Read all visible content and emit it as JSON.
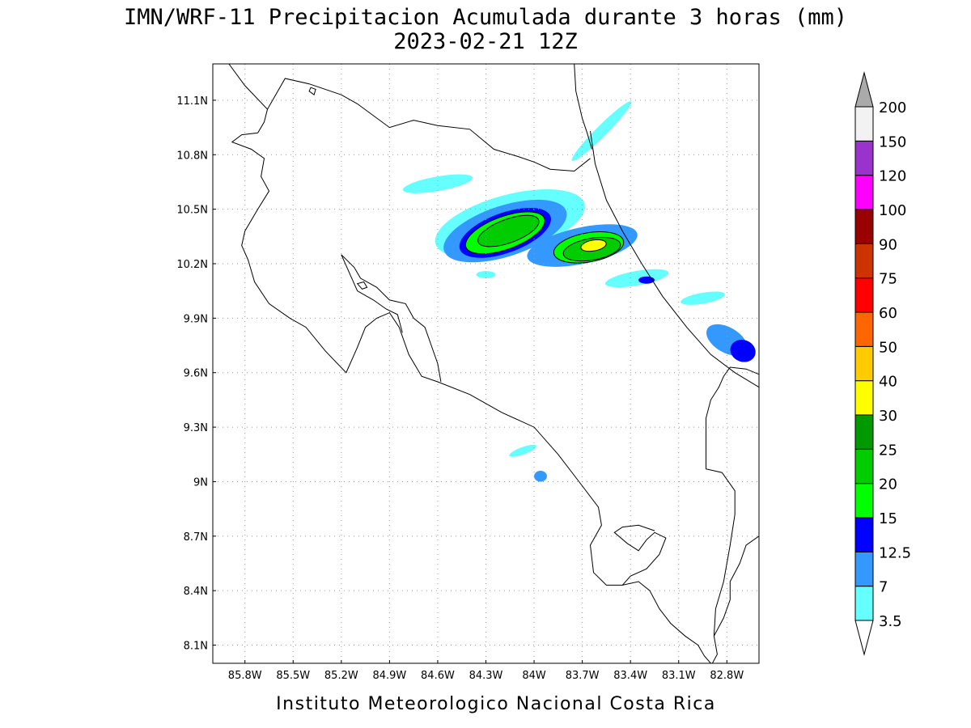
{
  "title": {
    "line1": "IMN/WRF-11 Precipitacion Acumulada durante 3 horas (mm)",
    "line2": "2023-02-21 12Z"
  },
  "map": {
    "lon_range": [
      -86.0,
      -82.6
    ],
    "lat_range": [
      8.0,
      11.3
    ],
    "lon_ticks": [
      {
        "value": -85.8,
        "label": "85.8W"
      },
      {
        "value": -85.5,
        "label": "85.5W"
      },
      {
        "value": -85.2,
        "label": "85.2W"
      },
      {
        "value": -84.9,
        "label": "84.9W"
      },
      {
        "value": -84.6,
        "label": "84.6W"
      },
      {
        "value": -84.3,
        "label": "84.3W"
      },
      {
        "value": -84.0,
        "label": "84W"
      },
      {
        "value": -83.7,
        "label": "83.7W"
      },
      {
        "value": -83.4,
        "label": "83.4W"
      },
      {
        "value": -83.1,
        "label": "83.1W"
      },
      {
        "value": -82.8,
        "label": "82.8W"
      }
    ],
    "lat_ticks": [
      {
        "value": 11.1,
        "label": "11.1N"
      },
      {
        "value": 10.8,
        "label": "10.8N"
      },
      {
        "value": 10.5,
        "label": "10.5N"
      },
      {
        "value": 10.2,
        "label": "10.2N"
      },
      {
        "value": 9.9,
        "label": "9.9N"
      },
      {
        "value": 9.6,
        "label": "9.6N"
      },
      {
        "value": 9.3,
        "label": "9.3N"
      },
      {
        "value": 9.0,
        "label": "9N"
      },
      {
        "value": 8.7,
        "label": "8.7N"
      },
      {
        "value": 8.4,
        "label": "8.4N"
      },
      {
        "value": 8.1,
        "label": "8.1N"
      }
    ],
    "grid": "dotted",
    "coastlines": [
      {
        "name": "lake-nicaragua-shore",
        "points": [
          [
            -85.9,
            11.3
          ],
          [
            -85.8,
            11.18
          ],
          [
            -85.66,
            11.05
          ],
          [
            -85.55,
            11.22
          ],
          [
            -85.4,
            11.19
          ],
          [
            -85.2,
            11.13
          ],
          [
            -85.1,
            11.08
          ],
          [
            -84.9,
            10.95
          ],
          [
            -84.75,
            10.99
          ],
          [
            -84.6,
            10.96
          ],
          [
            -84.4,
            10.94
          ],
          [
            -84.25,
            10.83
          ],
          [
            -84.1,
            10.79
          ],
          [
            -84.0,
            10.76
          ],
          [
            -83.9,
            10.72
          ],
          [
            -83.75,
            10.71
          ],
          [
            -83.65,
            10.78
          ]
        ]
      },
      {
        "name": "pacific-and-southern-coast",
        "points": [
          [
            -85.66,
            11.05
          ],
          [
            -85.68,
            10.98
          ],
          [
            -85.72,
            10.92
          ],
          [
            -85.82,
            10.91
          ],
          [
            -85.88,
            10.87
          ],
          [
            -85.76,
            10.83
          ],
          [
            -85.68,
            10.78
          ],
          [
            -85.7,
            10.68
          ],
          [
            -85.65,
            10.6
          ],
          [
            -85.72,
            10.5
          ],
          [
            -85.8,
            10.38
          ],
          [
            -85.82,
            10.3
          ],
          [
            -85.78,
            10.22
          ],
          [
            -85.74,
            10.1
          ],
          [
            -85.65,
            9.98
          ],
          [
            -85.52,
            9.9
          ],
          [
            -85.42,
            9.85
          ],
          [
            -85.3,
            9.72
          ],
          [
            -85.17,
            9.6
          ],
          [
            -85.1,
            9.74
          ],
          [
            -85.05,
            9.85
          ],
          [
            -84.98,
            9.9
          ],
          [
            -84.9,
            9.93
          ],
          [
            -84.84,
            9.85
          ],
          [
            -84.78,
            9.7
          ],
          [
            -84.7,
            9.58
          ],
          [
            -84.6,
            9.55
          ],
          [
            -84.4,
            9.48
          ],
          [
            -84.2,
            9.38
          ],
          [
            -84.0,
            9.3
          ],
          [
            -83.85,
            9.15
          ],
          [
            -83.72,
            9.0
          ],
          [
            -83.6,
            8.86
          ],
          [
            -83.58,
            8.76
          ],
          [
            -83.65,
            8.65
          ],
          [
            -83.63,
            8.5
          ],
          [
            -83.55,
            8.43
          ],
          [
            -83.45,
            8.43
          ],
          [
            -83.35,
            8.45
          ],
          [
            -83.28,
            8.4
          ],
          [
            -83.22,
            8.3
          ],
          [
            -83.15,
            8.22
          ],
          [
            -83.06,
            8.15
          ],
          [
            -82.98,
            8.1
          ],
          [
            -82.94,
            8.04
          ],
          [
            -82.9,
            8.0
          ]
        ]
      },
      {
        "name": "golfo-dulce-shore",
        "points": [
          [
            -83.45,
            8.43
          ],
          [
            -83.4,
            8.48
          ],
          [
            -83.3,
            8.52
          ],
          [
            -83.22,
            8.6
          ],
          [
            -83.18,
            8.69
          ],
          [
            -83.25,
            8.72
          ],
          [
            -83.3,
            8.68
          ],
          [
            -83.35,
            8.62
          ],
          [
            -83.42,
            8.66
          ],
          [
            -83.5,
            8.72
          ],
          [
            -83.45,
            8.75
          ],
          [
            -83.35,
            8.76
          ],
          [
            -83.25,
            8.73
          ]
        ]
      },
      {
        "name": "burica-peninsula",
        "points": [
          [
            -82.89,
            8.0
          ],
          [
            -82.86,
            8.05
          ],
          [
            -82.88,
            8.15
          ],
          [
            -82.82,
            8.25
          ],
          [
            -82.78,
            8.35
          ],
          [
            -82.78,
            8.45
          ],
          [
            -82.72,
            8.55
          ],
          [
            -82.68,
            8.65
          ],
          [
            -82.6,
            8.7
          ]
        ]
      },
      {
        "name": "caribbean-coast",
        "points": [
          [
            -83.65,
            10.93
          ],
          [
            -83.62,
            10.75
          ],
          [
            -83.55,
            10.55
          ],
          [
            -83.45,
            10.38
          ],
          [
            -83.33,
            10.2
          ],
          [
            -83.2,
            10.02
          ],
          [
            -83.05,
            9.85
          ],
          [
            -82.9,
            9.7
          ],
          [
            -82.75,
            9.6
          ],
          [
            -82.6,
            9.52
          ]
        ]
      },
      {
        "name": "panama-border-line",
        "points": [
          [
            -82.57,
            9.58
          ],
          [
            -82.68,
            9.62
          ],
          [
            -82.78,
            9.63
          ],
          [
            -82.82,
            9.58
          ],
          [
            -82.85,
            9.52
          ],
          [
            -82.9,
            9.45
          ],
          [
            -82.93,
            9.35
          ],
          [
            -82.93,
            9.22
          ],
          [
            -82.93,
            9.07
          ],
          [
            -82.83,
            9.05
          ],
          [
            -82.75,
            8.95
          ],
          [
            -82.75,
            8.82
          ],
          [
            -82.78,
            8.65
          ],
          [
            -82.82,
            8.45
          ],
          [
            -82.87,
            8.3
          ],
          [
            -82.88,
            8.15
          ]
        ]
      },
      {
        "name": "rio-san-juan-border",
        "points": [
          [
            -83.75,
            11.3
          ],
          [
            -83.74,
            11.15
          ],
          [
            -83.7,
            11.0
          ],
          [
            -83.67,
            10.92
          ],
          [
            -83.64,
            10.83
          ]
        ]
      },
      {
        "name": "nicoya-upper-gulf",
        "points": [
          [
            -85.2,
            10.25
          ],
          [
            -85.12,
            10.18
          ],
          [
            -85.08,
            10.12
          ],
          [
            -84.98,
            10.07
          ],
          [
            -84.9,
            10.0
          ],
          [
            -84.8,
            9.98
          ],
          [
            -84.75,
            9.9
          ],
          [
            -84.68,
            9.85
          ],
          [
            -84.64,
            9.75
          ],
          [
            -84.6,
            9.65
          ],
          [
            -84.58,
            9.55
          ]
        ]
      },
      {
        "name": "nicoya-east-shore",
        "points": [
          [
            -85.2,
            10.25
          ],
          [
            -85.15,
            10.15
          ],
          [
            -85.1,
            10.05
          ],
          [
            -85.0,
            10.0
          ],
          [
            -84.92,
            9.95
          ],
          [
            -84.85,
            9.92
          ],
          [
            -84.82,
            9.82
          ]
        ]
      }
    ],
    "islands": [
      [
        [
          -85.1,
          10.09
        ],
        [
          -85.07,
          10.06
        ],
        [
          -85.04,
          10.07
        ],
        [
          -85.06,
          10.1
        ]
      ],
      [
        [
          -85.4,
          11.15
        ],
        [
          -85.37,
          11.13
        ],
        [
          -85.36,
          11.16
        ],
        [
          -85.39,
          11.17
        ]
      ]
    ],
    "precip_cells": [
      {
        "lon": -84.15,
        "lat": 10.42,
        "rx": 0.48,
        "ry": 0.16,
        "rot": -15,
        "mm": 3.5
      },
      {
        "lon": -84.18,
        "lat": 10.38,
        "rx": 0.4,
        "ry": 0.14,
        "rot": -18,
        "mm": 7
      },
      {
        "lon": -84.18,
        "lat": 10.37,
        "rx": 0.3,
        "ry": 0.11,
        "rot": -20,
        "mm": 12.5
      },
      {
        "lon": -84.18,
        "lat": 10.37,
        "rx": 0.26,
        "ry": 0.09,
        "rot": -20,
        "mm": 15
      },
      {
        "lon": -84.16,
        "lat": 10.38,
        "rx": 0.2,
        "ry": 0.065,
        "rot": -20,
        "mm": 20
      },
      {
        "lon": -83.7,
        "lat": 10.3,
        "rx": 0.35,
        "ry": 0.1,
        "rot": -12,
        "mm": 7
      },
      {
        "lon": -83.66,
        "lat": 10.29,
        "rx": 0.22,
        "ry": 0.08,
        "rot": -10,
        "mm": 15
      },
      {
        "lon": -83.64,
        "lat": 10.28,
        "rx": 0.18,
        "ry": 0.06,
        "rot": -10,
        "mm": 20
      },
      {
        "lon": -83.63,
        "lat": 10.3,
        "rx": 0.08,
        "ry": 0.03,
        "rot": -10,
        "mm": 30
      },
      {
        "lon": -84.6,
        "lat": 10.64,
        "rx": 0.22,
        "ry": 0.04,
        "rot": -10,
        "mm": 3.5
      },
      {
        "lon": -83.36,
        "lat": 10.12,
        "rx": 0.2,
        "ry": 0.04,
        "rot": -10,
        "mm": 3.5
      },
      {
        "lon": -83.3,
        "lat": 10.11,
        "rx": 0.05,
        "ry": 0.02,
        "rot": 0,
        "mm": 12.5
      },
      {
        "lon": -83.58,
        "lat": 10.93,
        "rx": 0.26,
        "ry": 0.03,
        "rot": -45,
        "mm": 3.5
      },
      {
        "lon": -82.8,
        "lat": 9.78,
        "rx": 0.14,
        "ry": 0.07,
        "rot": 30,
        "mm": 7
      },
      {
        "lon": -82.7,
        "lat": 9.72,
        "rx": 0.08,
        "ry": 0.06,
        "rot": 20,
        "mm": 12.5
      },
      {
        "lon": -82.95,
        "lat": 10.01,
        "rx": 0.14,
        "ry": 0.03,
        "rot": -10,
        "mm": 3.5
      },
      {
        "lon": -83.96,
        "lat": 9.03,
        "rx": 0.04,
        "ry": 0.03,
        "rot": 0,
        "mm": 7
      },
      {
        "lon": -84.07,
        "lat": 9.17,
        "rx": 0.09,
        "ry": 0.02,
        "rot": -20,
        "mm": 3.5
      },
      {
        "lon": -84.3,
        "lat": 10.14,
        "rx": 0.06,
        "ry": 0.02,
        "rot": 0,
        "mm": 3.5
      }
    ]
  },
  "colorbar": {
    "levels": [
      {
        "label": "3.5",
        "color": "#66ffff"
      },
      {
        "label": "7",
        "color": "#3399ff"
      },
      {
        "label": "12.5",
        "color": "#0000ff"
      },
      {
        "label": "15",
        "color": "#00ff00"
      },
      {
        "label": "20",
        "color": "#00cc00"
      },
      {
        "label": "25",
        "color": "#009900"
      },
      {
        "label": "30",
        "color": "#ffff00"
      },
      {
        "label": "40",
        "color": "#ffcc00"
      },
      {
        "label": "50",
        "color": "#ff6600"
      },
      {
        "label": "60",
        "color": "#ff0000"
      },
      {
        "label": "75",
        "color": "#cc3300"
      },
      {
        "label": "90",
        "color": "#990000"
      },
      {
        "label": "100",
        "color": "#ff00ff"
      },
      {
        "label": "120",
        "color": "#9933cc"
      },
      {
        "label": "150",
        "color": "#f2f2f2"
      },
      {
        "label": "200",
        "color": ""
      }
    ],
    "low_color": "#ffffff",
    "high_color": "#aaaaaa"
  },
  "credit": "Instituto Meteorologico Nacional Costa Rica"
}
